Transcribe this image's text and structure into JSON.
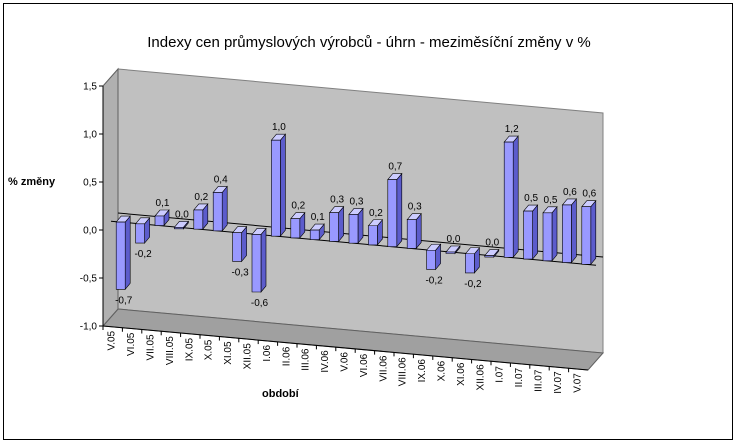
{
  "chart_data": {
    "type": "bar",
    "title": "Indexy cen průmyslových výrobců - úhrn - meziměsíční změny v %",
    "xlabel": "období",
    "ylabel": "% změny",
    "ylim": [
      -1.0,
      1.5
    ],
    "yticks": [
      "1,5",
      "1,0",
      "0,5",
      "0,0",
      "-0,5",
      "-1,0"
    ],
    "categories": [
      "V.05",
      "VI.05",
      "VII.05",
      "VIII.05",
      "IX.05",
      "X.05",
      "XI.05",
      "XII.05",
      "I.06",
      "II.06",
      "III.06",
      "IV.06",
      "V.06",
      "VI.06",
      "VII.06",
      "VIII.06",
      "IX.06",
      "X.06",
      "XI.06",
      "XII.06",
      "I.07",
      "II.07",
      "III.07",
      "IV.07",
      "V.07"
    ],
    "values": [
      -0.7,
      -0.2,
      0.1,
      0.0,
      0.2,
      0.4,
      -0.3,
      -0.6,
      1.0,
      0.2,
      0.1,
      0.3,
      0.3,
      0.2,
      0.7,
      0.3,
      -0.2,
      0.0,
      -0.2,
      0.0,
      1.2,
      0.5,
      0.5,
      0.6,
      0.6
    ],
    "value_labels": [
      "-0,7",
      "-0,2",
      "0,1",
      "0,0",
      "0,2",
      "0,4",
      "-0,3",
      "-0,6",
      "1,0",
      "0,2",
      "0,1",
      "0,3",
      "0,3",
      "0,2",
      "0,7",
      "0,3",
      "-0,2",
      "0,0",
      "-0,2",
      "0,0",
      "1,2",
      "0,5",
      "0,5",
      "0,6",
      "0,6"
    ],
    "colors": {
      "wall": "#c0c0c0",
      "floor": "#a0a0a0",
      "bar_front": "#9999ff",
      "bar_side": "#5c5ccc",
      "bar_top": "#ccccff"
    },
    "grid": false,
    "legend": "none",
    "projection": "3d-oblique"
  }
}
